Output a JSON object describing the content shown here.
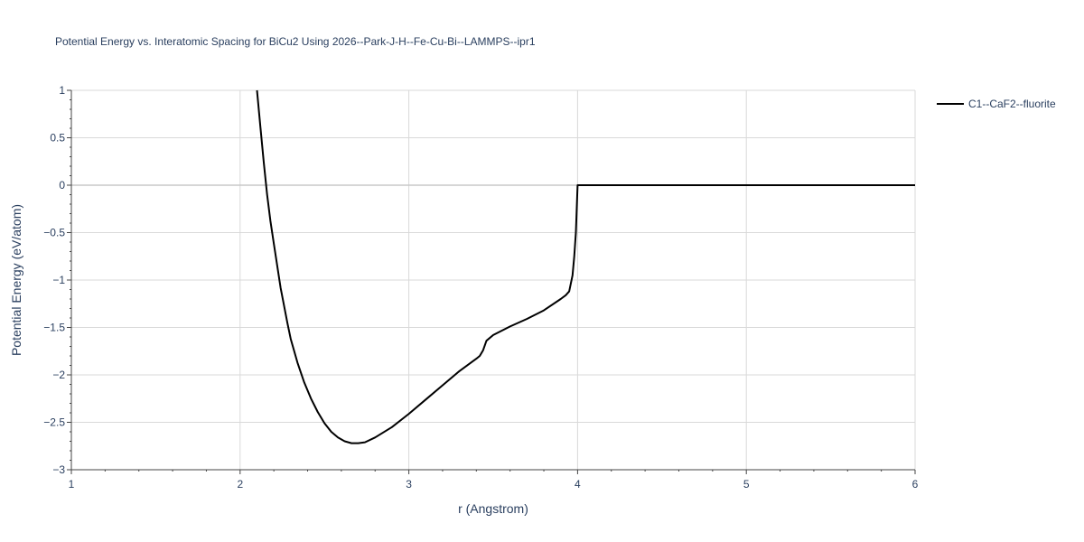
{
  "chart_data": {
    "type": "line",
    "title": "Potential Energy vs. Interatomic Spacing for BiCu2 Using 2026--Park-J-H--Fe-Cu-Bi--LAMMPS--ipr1",
    "xlabel": "r (Angstrom)",
    "ylabel": "Potential Energy (eV/atom)",
    "xlim": [
      1,
      6
    ],
    "ylim": [
      -3,
      1
    ],
    "xticks": [
      1,
      2,
      3,
      4,
      5,
      6
    ],
    "xtick_labels": [
      "1",
      "2",
      "3",
      "4",
      "5",
      "6"
    ],
    "yticks": [
      1,
      0.5,
      0,
      -0.5,
      -1,
      -1.5,
      -2,
      -2.5,
      -3
    ],
    "ytick_labels": [
      "1",
      "0.5",
      "0",
      "−0.5",
      "−1",
      "−1.5",
      "−2",
      "−2.5",
      "−3"
    ],
    "grid": true,
    "legend_position": "top-right",
    "series": [
      {
        "name": "C1--CaF2--fluorite",
        "color": "#000000",
        "x": [
          2.1,
          2.12,
          2.14,
          2.16,
          2.18,
          2.2,
          2.24,
          2.28,
          2.3,
          2.34,
          2.38,
          2.42,
          2.46,
          2.5,
          2.54,
          2.58,
          2.62,
          2.66,
          2.7,
          2.74,
          2.8,
          2.9,
          3.0,
          3.1,
          3.2,
          3.3,
          3.4,
          3.42,
          3.44,
          3.46,
          3.5,
          3.6,
          3.7,
          3.8,
          3.9,
          3.93,
          3.95,
          3.97,
          3.98,
          3.99,
          4.0,
          4.05,
          4.5,
          5.0,
          5.5,
          6.0
        ],
        "y": [
          1.0,
          0.62,
          0.24,
          -0.1,
          -0.38,
          -0.62,
          -1.08,
          -1.45,
          -1.62,
          -1.87,
          -2.08,
          -2.25,
          -2.39,
          -2.51,
          -2.6,
          -2.66,
          -2.7,
          -2.72,
          -2.72,
          -2.71,
          -2.66,
          -2.55,
          -2.41,
          -2.26,
          -2.11,
          -1.96,
          -1.83,
          -1.8,
          -1.74,
          -1.64,
          -1.58,
          -1.49,
          -1.41,
          -1.32,
          -1.2,
          -1.16,
          -1.12,
          -0.95,
          -0.75,
          -0.5,
          0.0,
          0.0,
          0.0,
          0.0,
          0.0,
          0.0
        ]
      }
    ]
  }
}
